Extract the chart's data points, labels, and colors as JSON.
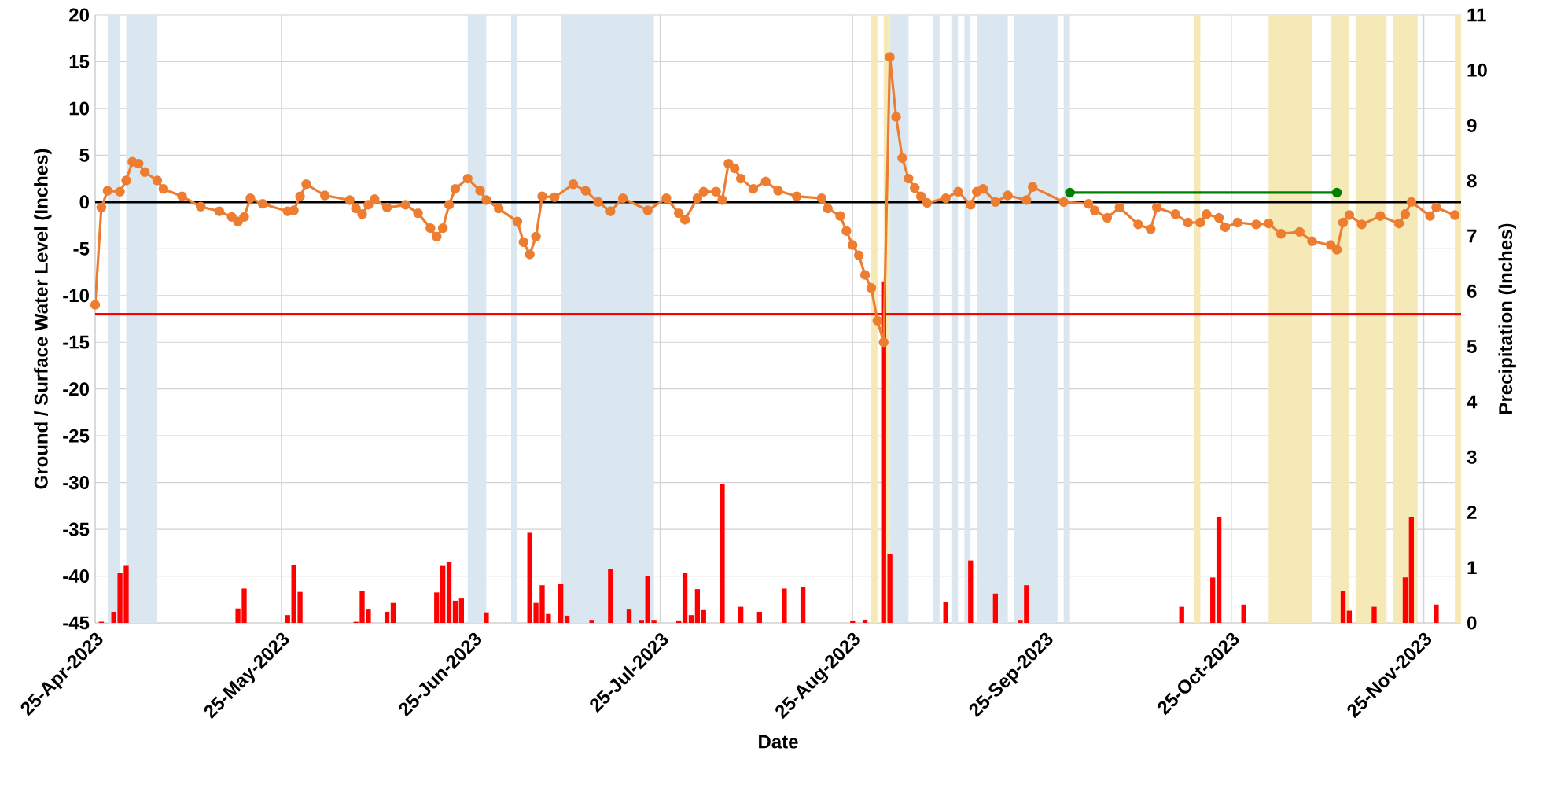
{
  "chart_data": {
    "type": "line",
    "xlabel": "Date",
    "ylabel": "Ground / Surface Water Level (Inches)",
    "y2label": "Precipitation (Inches)",
    "xlim": [
      "2023-04-25",
      "2023-12-01"
    ],
    "xticks": [
      {
        "value": "2023-04-25",
        "label": "25-Apr-2023"
      },
      {
        "value": "2023-05-25",
        "label": "25-May-2023"
      },
      {
        "value": "2023-06-25",
        "label": "25-Jun-2023"
      },
      {
        "value": "2023-07-25",
        "label": "25-Jul-2023"
      },
      {
        "value": "2023-08-25",
        "label": "25-Aug-2023"
      },
      {
        "value": "2023-09-25",
        "label": "25-Sep-2023"
      },
      {
        "value": "2023-10-25",
        "label": "25-Oct-2023"
      },
      {
        "value": "2023-11-25",
        "label": "25-Nov-2023"
      }
    ],
    "ylim": [
      -45,
      20
    ],
    "yticks": [
      -45,
      -40,
      -35,
      -30,
      -25,
      -20,
      -15,
      -10,
      -5,
      0,
      5,
      10,
      15,
      20
    ],
    "y2lim": [
      0,
      11
    ],
    "y2ticks": [
      0,
      1,
      2,
      3,
      4,
      5,
      6,
      7,
      8,
      9,
      10,
      11
    ],
    "grid": true,
    "marker": "circle",
    "line_style": "solid",
    "series": [
      {
        "color": "#ed7d31",
        "x": [
          "2023-04-25",
          "2023-04-26",
          "2023-04-27",
          "2023-04-29",
          "2023-04-30",
          "2023-05-01",
          "2023-05-02",
          "2023-05-03",
          "2023-05-05",
          "2023-05-06",
          "2023-05-09",
          "2023-05-12",
          "2023-05-15",
          "2023-05-17",
          "2023-05-18",
          "2023-05-19",
          "2023-05-20",
          "2023-05-22",
          "2023-05-26",
          "2023-05-27",
          "2023-05-28",
          "2023-05-29",
          "2023-06-01",
          "2023-06-05",
          "2023-06-06",
          "2023-06-07",
          "2023-06-08",
          "2023-06-09",
          "2023-06-11",
          "2023-06-14",
          "2023-06-16",
          "2023-06-18",
          "2023-06-19",
          "2023-06-20",
          "2023-06-21",
          "2023-06-22",
          "2023-06-24",
          "2023-06-26",
          "2023-06-27",
          "2023-06-29",
          "2023-07-02",
          "2023-07-03",
          "2023-07-04",
          "2023-07-05",
          "2023-07-06",
          "2023-07-08",
          "2023-07-11",
          "2023-07-13",
          "2023-07-15",
          "2023-07-17",
          "2023-07-19",
          "2023-07-23",
          "2023-07-26",
          "2023-07-28",
          "2023-07-29",
          "2023-07-31",
          "2023-08-01",
          "2023-08-03",
          "2023-08-04",
          "2023-08-05",
          "2023-08-06",
          "2023-08-07",
          "2023-08-09",
          "2023-08-11",
          "2023-08-13",
          "2023-08-16",
          "2023-08-20",
          "2023-08-21",
          "2023-08-23",
          "2023-08-24",
          "2023-08-25",
          "2023-08-26",
          "2023-08-27",
          "2023-08-28",
          "2023-08-29",
          "2023-08-30",
          "2023-08-31",
          "2023-09-01",
          "2023-09-02",
          "2023-09-03",
          "2023-09-04",
          "2023-09-05",
          "2023-09-06",
          "2023-09-09",
          "2023-09-11",
          "2023-09-13",
          "2023-09-14",
          "2023-09-15",
          "2023-09-17",
          "2023-09-19",
          "2023-09-22",
          "2023-09-23",
          "2023-09-28",
          "2023-10-02",
          "2023-10-03",
          "2023-10-05",
          "2023-10-07",
          "2023-10-10",
          "2023-10-12",
          "2023-10-13",
          "2023-10-16",
          "2023-10-18",
          "2023-10-20",
          "2023-10-21",
          "2023-10-23",
          "2023-10-24",
          "2023-10-26",
          "2023-10-29",
          "2023-10-31",
          "2023-11-02",
          "2023-11-05",
          "2023-11-07",
          "2023-11-10",
          "2023-11-11",
          "2023-11-12",
          "2023-11-13",
          "2023-11-15",
          "2023-11-18",
          "2023-11-21",
          "2023-11-22",
          "2023-11-23",
          "2023-11-26",
          "2023-11-27",
          "2023-11-30"
        ],
        "values": [
          -11,
          -0.6,
          1.2,
          1.1,
          2.3,
          4.3,
          4.1,
          3.2,
          2.3,
          1.4,
          0.6,
          -0.5,
          -1.0,
          -1.6,
          -2.1,
          -1.6,
          0.4,
          -0.2,
          -1.0,
          -0.9,
          0.6,
          1.9,
          0.7,
          0.2,
          -0.7,
          -1.3,
          -0.3,
          0.3,
          -0.6,
          -0.3,
          -1.2,
          -2.8,
          -3.7,
          -2.8,
          -0.3,
          1.4,
          2.5,
          1.2,
          0.2,
          -0.7,
          -2.1,
          -4.3,
          -5.6,
          -3.7,
          0.6,
          0.5,
          1.9,
          1.2,
          0.0,
          -1.0,
          0.4,
          -0.9,
          0.4,
          -1.2,
          -1.9,
          0.4,
          1.1,
          1.1,
          0.2,
          4.1,
          3.6,
          2.5,
          1.4,
          2.2,
          1.2,
          0.6,
          0.4,
          -0.7,
          -1.5,
          -3.1,
          -4.6,
          -5.7,
          -7.8,
          -9.2,
          -12.7,
          -15.0,
          15.5,
          9.1,
          4.7,
          2.5,
          1.5,
          0.6,
          -0.1,
          0.4,
          1.1,
          -0.3,
          1.1,
          1.4,
          0.0,
          0.7,
          0.2,
          1.6,
          0.0,
          -0.2,
          -0.9,
          -1.7,
          -0.6,
          -2.4,
          -2.9,
          -0.6,
          -1.3,
          -2.2,
          -2.2,
          -1.3,
          -1.7,
          -2.7,
          -2.2,
          -2.4,
          -2.3,
          -3.4,
          -3.2,
          -4.2,
          -4.6,
          -5.1,
          -2.2,
          -1.4,
          -2.4,
          -1.5,
          -2.3,
          -1.3,
          0.0,
          -1.5,
          -0.6,
          -1.4
        ]
      },
      {
        "color": "#008000",
        "x": [
          "2023-09-29",
          "2023-11-11"
        ],
        "values": [
          1.0,
          1.0
        ]
      },
      {
        "type": "bar",
        "axis": "y2",
        "color": "#ff0000",
        "x": [
          "2023-04-26",
          "2023-04-28",
          "2023-04-29",
          "2023-04-30",
          "2023-05-18",
          "2023-05-19",
          "2023-05-26",
          "2023-05-27",
          "2023-05-28",
          "2023-06-06",
          "2023-06-07",
          "2023-06-08",
          "2023-06-11",
          "2023-06-12",
          "2023-06-19",
          "2023-06-20",
          "2023-06-21",
          "2023-06-22",
          "2023-06-23",
          "2023-06-27",
          "2023-07-04",
          "2023-07-05",
          "2023-07-06",
          "2023-07-07",
          "2023-07-09",
          "2023-07-10",
          "2023-07-14",
          "2023-07-17",
          "2023-07-20",
          "2023-07-22",
          "2023-07-23",
          "2023-07-24",
          "2023-07-28",
          "2023-07-29",
          "2023-07-30",
          "2023-07-31",
          "2023-08-01",
          "2023-08-04",
          "2023-08-07",
          "2023-08-10",
          "2023-08-14",
          "2023-08-17",
          "2023-08-25",
          "2023-08-27",
          "2023-08-30",
          "2023-08-31",
          "2023-09-09",
          "2023-09-13",
          "2023-09-17",
          "2023-09-21",
          "2023-09-22",
          "2023-10-17",
          "2023-10-22",
          "2023-10-23",
          "2023-10-27",
          "2023-11-12",
          "2023-11-13",
          "2023-11-17",
          "2023-11-22",
          "2023-11-23",
          "2023-11-27"
        ],
        "values": [
          0.02,
          0.2,
          0.91,
          1.03,
          0.26,
          0.62,
          0.14,
          1.04,
          0.56,
          0.02,
          0.58,
          0.24,
          0.2,
          0.36,
          0.55,
          1.03,
          1.1,
          0.4,
          0.44,
          0.19,
          1.63,
          0.36,
          0.68,
          0.16,
          0.7,
          0.13,
          0.04,
          0.97,
          0.24,
          0.04,
          0.84,
          0.04,
          0.03,
          0.91,
          0.14,
          0.61,
          0.23,
          2.52,
          0.29,
          0.2,
          0.62,
          0.64,
          0.03,
          0.05,
          6.18,
          1.25,
          0.37,
          1.13,
          0.53,
          0.04,
          0.68,
          0.29,
          0.82,
          1.92,
          0.33,
          0.58,
          0.22,
          0.29,
          0.82,
          1.92,
          0.33
        ]
      }
    ],
    "ref_lines": [
      {
        "axis": "y",
        "value": 0,
        "color": "#000000",
        "line_style": "solid"
      },
      {
        "axis": "y",
        "value": -12,
        "color": "#ff0000",
        "line_style": "solid"
      }
    ],
    "bands": [
      {
        "axis": "x",
        "from": "2023-04-27",
        "to": "2023-04-29",
        "color": "#dae7f1"
      },
      {
        "axis": "x",
        "from": "2023-04-30",
        "to": "2023-05-05",
        "color": "#dae7f1"
      },
      {
        "axis": "x",
        "from": "2023-06-24",
        "to": "2023-06-27",
        "color": "#dae7f1"
      },
      {
        "axis": "x",
        "from": "2023-07-01",
        "to": "2023-07-02",
        "color": "#dae7f1"
      },
      {
        "axis": "x",
        "from": "2023-07-09",
        "to": "2023-07-24",
        "color": "#dae7f1"
      },
      {
        "axis": "x",
        "from": "2023-08-31",
        "to": "2023-09-03",
        "color": "#dae7f1"
      },
      {
        "axis": "x",
        "from": "2023-09-07",
        "to": "2023-09-08",
        "color": "#dae7f1"
      },
      {
        "axis": "x",
        "from": "2023-09-10",
        "to": "2023-09-11",
        "color": "#dae7f1"
      },
      {
        "axis": "x",
        "from": "2023-09-12",
        "to": "2023-09-13",
        "color": "#dae7f1"
      },
      {
        "axis": "x",
        "from": "2023-09-14",
        "to": "2023-09-19",
        "color": "#dae7f1"
      },
      {
        "axis": "x",
        "from": "2023-09-20",
        "to": "2023-09-27",
        "color": "#dae7f1"
      },
      {
        "axis": "x",
        "from": "2023-09-28",
        "to": "2023-09-29",
        "color": "#dae7f1"
      },
      {
        "axis": "x",
        "from": "2023-08-28",
        "to": "2023-08-29",
        "color": "#f6e9b8"
      },
      {
        "axis": "x",
        "from": "2023-08-30",
        "to": "2023-08-31",
        "color": "#f6e9b8"
      },
      {
        "axis": "x",
        "from": "2023-10-19",
        "to": "2023-10-20",
        "color": "#f6e9b8"
      },
      {
        "axis": "x",
        "from": "2023-10-31",
        "to": "2023-11-07",
        "color": "#f6e9b8"
      },
      {
        "axis": "x",
        "from": "2023-11-10",
        "to": "2023-11-13",
        "color": "#f6e9b8"
      },
      {
        "axis": "x",
        "from": "2023-11-14",
        "to": "2023-11-19",
        "color": "#f6e9b8"
      },
      {
        "axis": "x",
        "from": "2023-11-20",
        "to": "2023-11-24",
        "color": "#f6e9b8"
      },
      {
        "axis": "x",
        "from": "2023-11-30",
        "to": "2023-12-01",
        "color": "#f6e9b8"
      }
    ]
  }
}
